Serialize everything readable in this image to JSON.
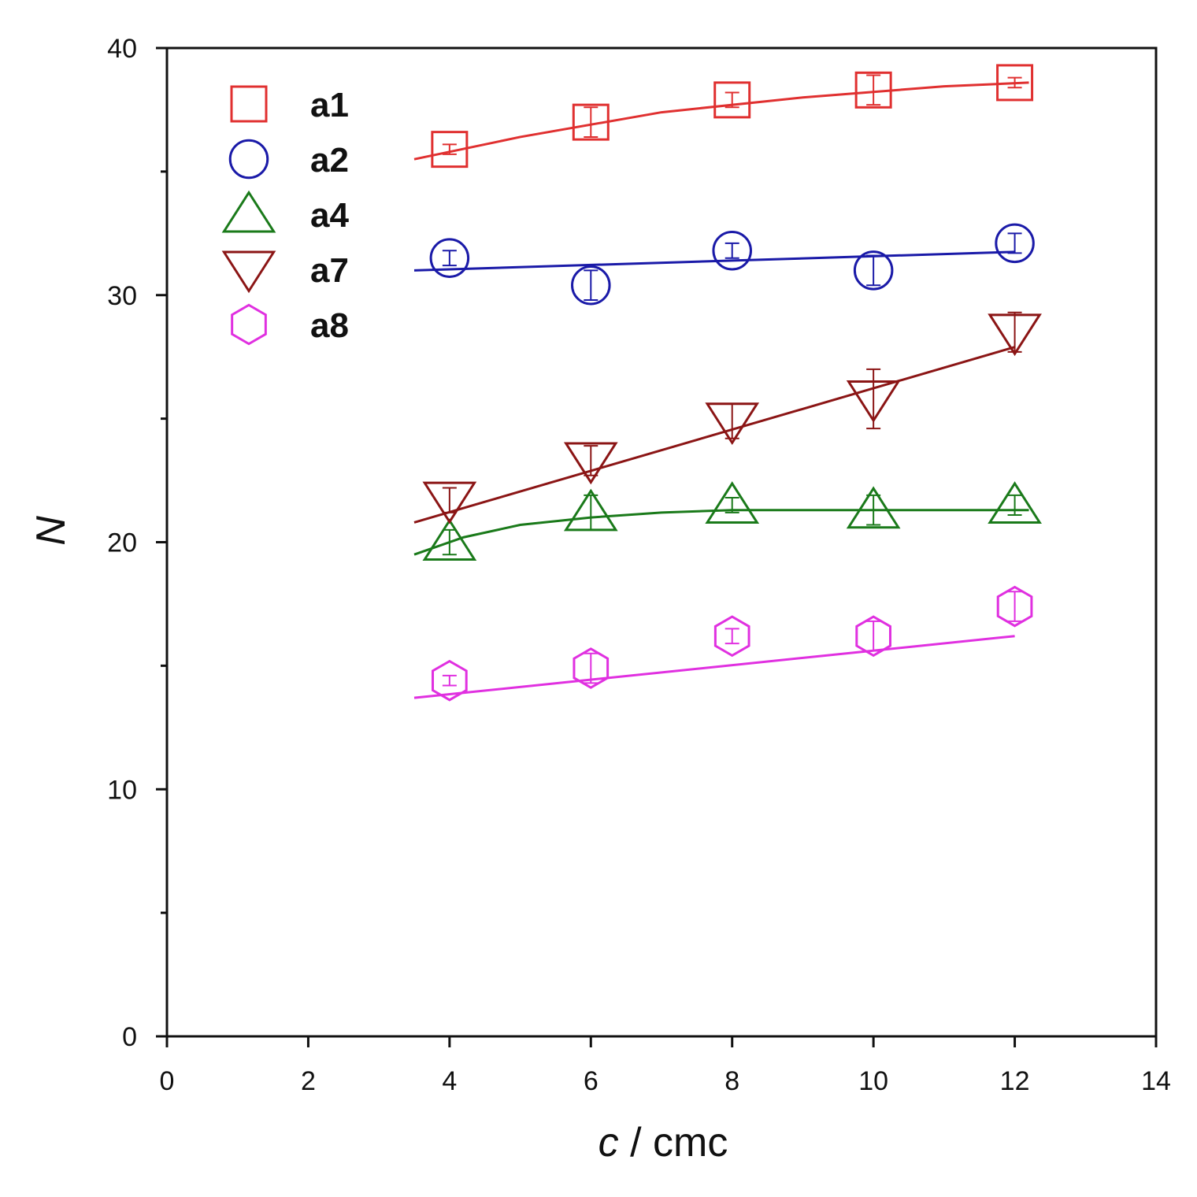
{
  "chart_data": {
    "type": "scatter",
    "title": "",
    "xlabel_italic": "c",
    "xlabel_rest": " / cmc",
    "ylabel": "N",
    "xlim": [
      0,
      14
    ],
    "ylim": [
      0,
      40
    ],
    "xticks": [
      0,
      2,
      4,
      6,
      8,
      10,
      12,
      14
    ],
    "xtick_labels": [
      "0",
      "2",
      "4",
      "6",
      "8",
      "10",
      "12",
      "14"
    ],
    "yticks": [
      0,
      10,
      20,
      30,
      40
    ],
    "ytick_labels": [
      "0",
      "10",
      "20",
      "30",
      "40"
    ],
    "y_minor_ticks": [
      5,
      15,
      25,
      35
    ],
    "grid": false,
    "legend_position": "top-left",
    "series": [
      {
        "name": "a1",
        "marker": "square",
        "color": "#e03030",
        "x": [
          4,
          6,
          8,
          10,
          12
        ],
        "y": [
          35.9,
          37.0,
          37.9,
          38.3,
          38.6
        ],
        "err": [
          0.2,
          0.6,
          0.3,
          0.6,
          0.2
        ],
        "fit_x": [
          3.5,
          5,
          7,
          9,
          11,
          12.2
        ],
        "fit_y": [
          35.5,
          36.4,
          37.4,
          38.0,
          38.45,
          38.6
        ]
      },
      {
        "name": "a2",
        "marker": "circle",
        "color": "#1a1aa8",
        "x": [
          4,
          6,
          8,
          10,
          12
        ],
        "y": [
          31.5,
          30.4,
          31.8,
          31.0,
          32.1
        ],
        "err": [
          0.3,
          0.6,
          0.3,
          0.6,
          0.4
        ],
        "fit_x": [
          3.5,
          12.0
        ],
        "fit_y": [
          31.0,
          31.75
        ]
      },
      {
        "name": "a4",
        "marker": "triangle-up",
        "color": "#1a7a1a",
        "x": [
          4,
          6,
          8,
          10,
          12
        ],
        "y": [
          20.0,
          21.2,
          21.5,
          21.3,
          21.5
        ],
        "err": [
          0.5,
          0.7,
          0.3,
          0.6,
          0.4
        ],
        "fit_x": [
          3.5,
          4.2,
          5,
          6,
          7,
          8,
          12.2
        ],
        "fit_y": [
          19.5,
          20.2,
          20.7,
          21.0,
          21.2,
          21.3,
          21.3
        ]
      },
      {
        "name": "a7",
        "marker": "triangle-down",
        "color": "#8b1515",
        "x": [
          4,
          6,
          8,
          10,
          12
        ],
        "y": [
          21.7,
          23.3,
          24.9,
          25.8,
          28.5
        ],
        "err": [
          0.5,
          0.6,
          0.7,
          1.2,
          0.8
        ],
        "fit_x": [
          3.5,
          12.0
        ],
        "fit_y": [
          20.8,
          27.9
        ]
      },
      {
        "name": "a8",
        "marker": "hexagon",
        "color": "#e030e0",
        "x": [
          4,
          6,
          8,
          10,
          12
        ],
        "y": [
          14.4,
          14.9,
          16.2,
          16.2,
          17.4
        ],
        "err": [
          0.2,
          0.6,
          0.3,
          0.6,
          0.6
        ],
        "fit_x": [
          3.5,
          12.0
        ],
        "fit_y": [
          13.7,
          16.2
        ]
      }
    ]
  }
}
